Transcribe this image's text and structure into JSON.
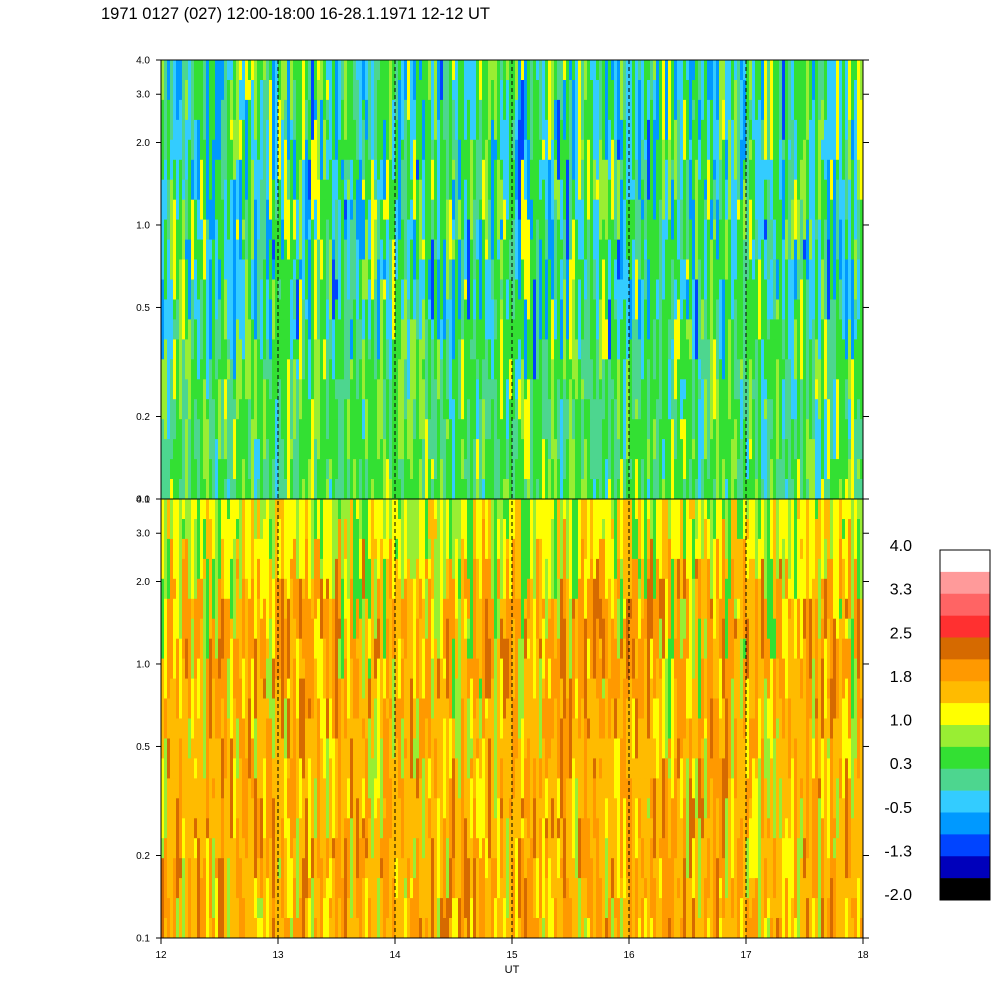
{
  "title": "1971 0127 (027) 12:00-18:00 16-28.1.1971  12-12 UT",
  "chart_data": [
    {
      "type": "heatmap",
      "panel": "upper",
      "x_range": [
        12,
        18
      ],
      "y_range": [
        0.1,
        4.0
      ],
      "y_scale": "log",
      "y_ticks": [
        0.1,
        0.2,
        0.5,
        1.0,
        2.0,
        3.0,
        4.0
      ],
      "y_tick_labels": [
        "0.1",
        "0.2",
        "0.5",
        "1.0",
        "2.0",
        "3.0",
        "4.0"
      ],
      "dominant_levels": "-0.5 to 1.0"
    },
    {
      "type": "heatmap",
      "panel": "lower",
      "x_range": [
        12,
        18
      ],
      "y_range": [
        0.1,
        4.0
      ],
      "y_scale": "log",
      "y_ticks": [
        0.1,
        0.2,
        0.5,
        1.0,
        2.0,
        3.0,
        4.0
      ],
      "y_tick_labels": [
        "0.1",
        "0.2",
        "0.5",
        "1.0",
        "2.0",
        "3.0",
        "4.0"
      ],
      "dominant_levels": "1.0 to 2.5"
    }
  ],
  "x_axis": {
    "label": "UT",
    "ticks": [
      12,
      13,
      14,
      15,
      16,
      17,
      18
    ],
    "tick_labels": [
      "12",
      "13",
      "14",
      "15",
      "16",
      "17",
      "18"
    ],
    "dashed_hour_markers": [
      13,
      14,
      15,
      16,
      17
    ]
  },
  "colorbar": {
    "labels": [
      "4.0",
      "3.3",
      "2.5",
      "1.8",
      "1.0",
      "0.3",
      "-0.5",
      "-1.3",
      "-2.0"
    ],
    "colors": [
      "#ffffff",
      "#ff9a9a",
      "#ff6464",
      "#ff3030",
      "#d66a00",
      "#ff9900",
      "#ffbb00",
      "#ffff00",
      "#99ee33",
      "#33e033",
      "#4dd68f",
      "#33ccff",
      "#0099ff",
      "#0044ff",
      "#0000bb",
      "#000000"
    ]
  }
}
